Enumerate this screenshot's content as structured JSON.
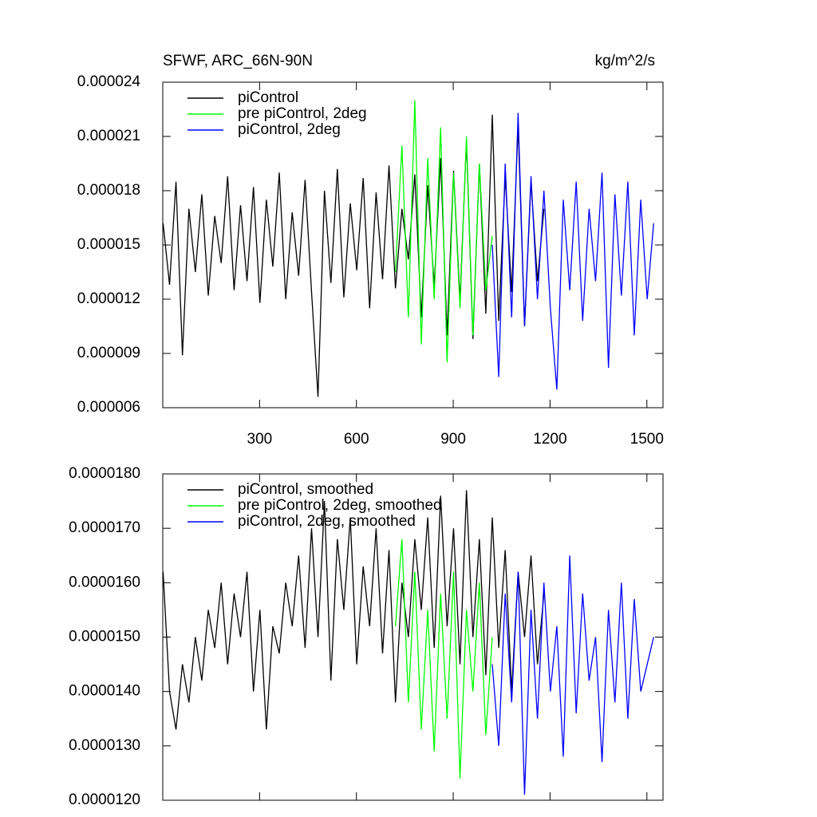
{
  "chart_data": [
    {
      "type": "line",
      "title": "SFWF, ARC_66N-90N",
      "units": "kg/m^2/s",
      "xlim": [
        0,
        1550
      ],
      "xticks": [
        300,
        600,
        900,
        1200,
        1500
      ],
      "xtick_labels": true,
      "ylim": [
        6e-06,
        2.4e-05
      ],
      "yticks": [
        6e-06,
        9e-06,
        1.2e-05,
        1.5e-05,
        1.8e-05,
        2.1e-05,
        2.4e-05
      ],
      "legend": "upper left",
      "series": [
        {
          "name": "piControl",
          "color": "#000000",
          "x": [
            1,
            21,
            41,
            61,
            81,
            101,
            121,
            141,
            161,
            181,
            201,
            221,
            241,
            261,
            281,
            301,
            321,
            341,
            361,
            381,
            401,
            421,
            441,
            461,
            481,
            501,
            521,
            541,
            561,
            581,
            601,
            621,
            641,
            661,
            681,
            701,
            721,
            741,
            761,
            781,
            801,
            821,
            841,
            861,
            881,
            901,
            921,
            941,
            961,
            981,
            1001,
            1021,
            1041,
            1061,
            1081,
            1101,
            1121,
            1141,
            1161,
            1181
          ],
          "values": [
            1.62e-05,
            1.28e-05,
            1.85e-05,
            8.9e-06,
            1.7e-05,
            1.35e-05,
            1.78e-05,
            1.22e-05,
            1.66e-05,
            1.4e-05,
            1.88e-05,
            1.25e-05,
            1.72e-05,
            1.3e-05,
            1.82e-05,
            1.18e-05,
            1.75e-05,
            1.38e-05,
            1.9e-05,
            1.2e-05,
            1.68e-05,
            1.33e-05,
            1.86e-05,
            1.24e-05,
            6.6e-06,
            1.8e-05,
            1.29e-05,
            1.92e-05,
            1.21e-05,
            1.73e-05,
            1.36e-05,
            1.87e-05,
            1.15e-05,
            1.79e-05,
            1.31e-05,
            1.94e-05,
            1.26e-05,
            1.7e-05,
            1.42e-05,
            1.89e-05,
            1.1e-05,
            1.83e-05,
            1.27e-05,
            1.98e-05,
            1e-05,
            1.91e-05,
            1.19e-05,
            2.08e-05,
            9.8e-06,
            1.95e-05,
            1.12e-05,
            2.22e-05,
            1.08e-05,
            1.88e-05,
            1.24e-05,
            2.16e-05,
            1.05e-05,
            1.85e-05,
            1.3e-05,
            1.7e-05
          ]
        },
        {
          "name": "pre piControl, 2deg",
          "color": "#00ff00",
          "x": [
            721,
            741,
            761,
            781,
            801,
            821,
            841,
            861,
            881,
            901,
            921,
            941,
            961,
            981,
            1001,
            1021
          ],
          "values": [
            1.35e-05,
            2.05e-05,
            1.1e-05,
            2.3e-05,
            9.5e-06,
            1.98e-05,
            1.2e-05,
            2.15e-05,
            8.5e-06,
            1.9e-05,
            1.15e-05,
            2.1e-05,
            1e-05,
            1.95e-05,
            1.25e-05,
            1.55e-05
          ]
        },
        {
          "name": "piControl, 2deg",
          "color": "#0000ff",
          "x": [
            1021,
            1041,
            1061,
            1081,
            1101,
            1121,
            1141,
            1161,
            1181,
            1201,
            1221,
            1241,
            1261,
            1281,
            1301,
            1321,
            1341,
            1361,
            1381,
            1401,
            1421,
            1441,
            1461,
            1481,
            1501,
            1521
          ],
          "values": [
            1.5e-05,
            7.7e-06,
            1.95e-05,
            1.1e-05,
            2.23e-05,
            1.05e-05,
            1.88e-05,
            1.2e-05,
            1.8e-05,
            1.15e-05,
            7e-06,
            1.75e-05,
            1.25e-05,
            1.85e-05,
            1.08e-05,
            1.7e-05,
            1.3e-05,
            1.9e-05,
            8.2e-06,
            1.78e-05,
            1.22e-05,
            1.85e-05,
            1e-05,
            1.75e-05,
            1.2e-05,
            1.62e-05
          ]
        }
      ]
    },
    {
      "type": "line",
      "xlim": [
        0,
        1550
      ],
      "xticks": [
        300,
        600,
        900,
        1200,
        1500
      ],
      "xtick_labels": false,
      "ylim": [
        1.2e-05,
        1.8e-05
      ],
      "yticks": [
        {
          "value": 1.2e-05,
          "label": "0.0000120"
        },
        {
          "value": 1.3e-05,
          "label": "0.0000130"
        },
        {
          "value": 1.4e-05,
          "label": "0.0000140"
        },
        {
          "value": 1.5e-05,
          "label": "0.0000150"
        },
        {
          "value": 1.6e-05,
          "label": "0.0000160"
        },
        {
          "value": 1.7e-05,
          "label": "0.0000170"
        },
        {
          "value": 1.8e-05,
          "label": "0.0000180"
        }
      ],
      "legend": "upper left",
      "series": [
        {
          "name": "piControl, smoothed",
          "color": "#000000",
          "x": [
            1,
            21,
            41,
            61,
            81,
            101,
            121,
            141,
            161,
            181,
            201,
            221,
            241,
            261,
            281,
            301,
            321,
            341,
            361,
            381,
            401,
            421,
            441,
            461,
            481,
            501,
            521,
            541,
            561,
            581,
            601,
            621,
            641,
            661,
            681,
            701,
            721,
            741,
            761,
            781,
            801,
            821,
            841,
            861,
            881,
            901,
            921,
            941,
            961,
            981,
            1001,
            1021,
            1041,
            1061,
            1081,
            1101,
            1121,
            1141,
            1161,
            1181
          ],
          "values": [
            1.62e-05,
            1.4e-05,
            1.33e-05,
            1.45e-05,
            1.38e-05,
            1.5e-05,
            1.42e-05,
            1.55e-05,
            1.48e-05,
            1.6e-05,
            1.45e-05,
            1.58e-05,
            1.5e-05,
            1.62e-05,
            1.4e-05,
            1.55e-05,
            1.33e-05,
            1.52e-05,
            1.47e-05,
            1.6e-05,
            1.52e-05,
            1.65e-05,
            1.48e-05,
            1.7e-05,
            1.5e-05,
            1.75e-05,
            1.42e-05,
            1.68e-05,
            1.55e-05,
            1.72e-05,
            1.45e-05,
            1.63e-05,
            1.52e-05,
            1.7e-05,
            1.47e-05,
            1.66e-05,
            1.38e-05,
            1.6e-05,
            1.5e-05,
            1.68e-05,
            1.55e-05,
            1.72e-05,
            1.48e-05,
            1.76e-05,
            1.52e-05,
            1.7e-05,
            1.45e-05,
            1.77e-05,
            1.5e-05,
            1.68e-05,
            1.43e-05,
            1.72e-05,
            1.48e-05,
            1.66e-05,
            1.4e-05,
            1.62e-05,
            1.5e-05,
            1.65e-05,
            1.45e-05,
            1.58e-05
          ]
        },
        {
          "name": "pre piControl, 2deg, smoothed",
          "color": "#00ff00",
          "x": [
            721,
            741,
            761,
            781,
            801,
            821,
            841,
            861,
            881,
            901,
            921,
            941,
            961,
            981,
            1001,
            1021
          ],
          "values": [
            1.52e-05,
            1.68e-05,
            1.38e-05,
            1.62e-05,
            1.33e-05,
            1.55e-05,
            1.29e-05,
            1.58e-05,
            1.35e-05,
            1.62e-05,
            1.24e-05,
            1.55e-05,
            1.4e-05,
            1.6e-05,
            1.32e-05,
            1.5e-05
          ]
        },
        {
          "name": "piControl, 2deg, smoothed",
          "color": "#0000ff",
          "x": [
            1021,
            1041,
            1061,
            1081,
            1101,
            1121,
            1141,
            1161,
            1181,
            1201,
            1221,
            1241,
            1261,
            1281,
            1301,
            1321,
            1341,
            1361,
            1381,
            1401,
            1421,
            1441,
            1461,
            1481,
            1501,
            1521
          ],
          "values": [
            1.45e-05,
            1.3e-05,
            1.58e-05,
            1.38e-05,
            1.62e-05,
            1.21e-05,
            1.55e-05,
            1.35e-05,
            1.6e-05,
            1.4e-05,
            1.52e-05,
            1.28e-05,
            1.65e-05,
            1.36e-05,
            1.58e-05,
            1.42e-05,
            1.5e-05,
            1.27e-05,
            1.55e-05,
            1.38e-05,
            1.6e-05,
            1.35e-05,
            1.57e-05,
            1.4e-05,
            1.45e-05,
            1.5e-05
          ]
        }
      ]
    }
  ]
}
